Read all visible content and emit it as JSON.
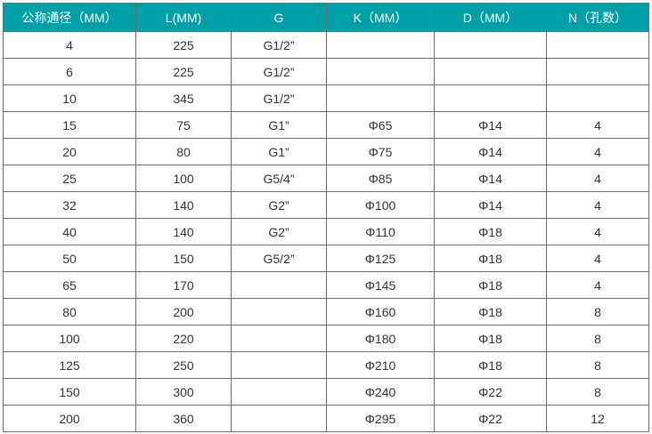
{
  "colors": {
    "header_bg": "#00a0a8",
    "header_text": "#ffffff",
    "border": "#6b6b6b"
  },
  "headers": [
    "公称通径（MM）",
    "L(MM)",
    "G",
    "K（MM）",
    "D（MM）",
    "N（孔数）"
  ],
  "rows": [
    [
      "4",
      "225",
      "G1/2”",
      "",
      "",
      ""
    ],
    [
      "6",
      "225",
      "G1/2”",
      "",
      "",
      ""
    ],
    [
      "10",
      "345",
      "G1/2”",
      "",
      "",
      ""
    ],
    [
      "15",
      "75",
      "G1”",
      "Φ65",
      "Φ14",
      "4"
    ],
    [
      "20",
      "80",
      "G1”",
      "Φ75",
      "Φ14",
      "4"
    ],
    [
      "25",
      "100",
      "G5/4”",
      "Φ85",
      "Φ14",
      "4"
    ],
    [
      "32",
      "140",
      "G2”",
      "Φ100",
      "Φ14",
      "4"
    ],
    [
      "40",
      "140",
      "G2”",
      "Φ110",
      "Φ18",
      "4"
    ],
    [
      "50",
      "150",
      "G5/2”",
      "Φ125",
      "Φ18",
      "4"
    ],
    [
      "65",
      "170",
      "",
      "Φ145",
      "Φ18",
      "4"
    ],
    [
      "80",
      "200",
      "",
      "Φ160",
      "Φ18",
      "8"
    ],
    [
      "100",
      "220",
      "",
      "Φ180",
      "Φ18",
      "8"
    ],
    [
      "125",
      "250",
      "",
      "Φ210",
      "Φ18",
      "8"
    ],
    [
      "150",
      "300",
      "",
      "Φ240",
      "Φ22",
      "8"
    ],
    [
      "200",
      "360",
      "",
      "Φ295",
      "Φ22",
      "12"
    ]
  ]
}
